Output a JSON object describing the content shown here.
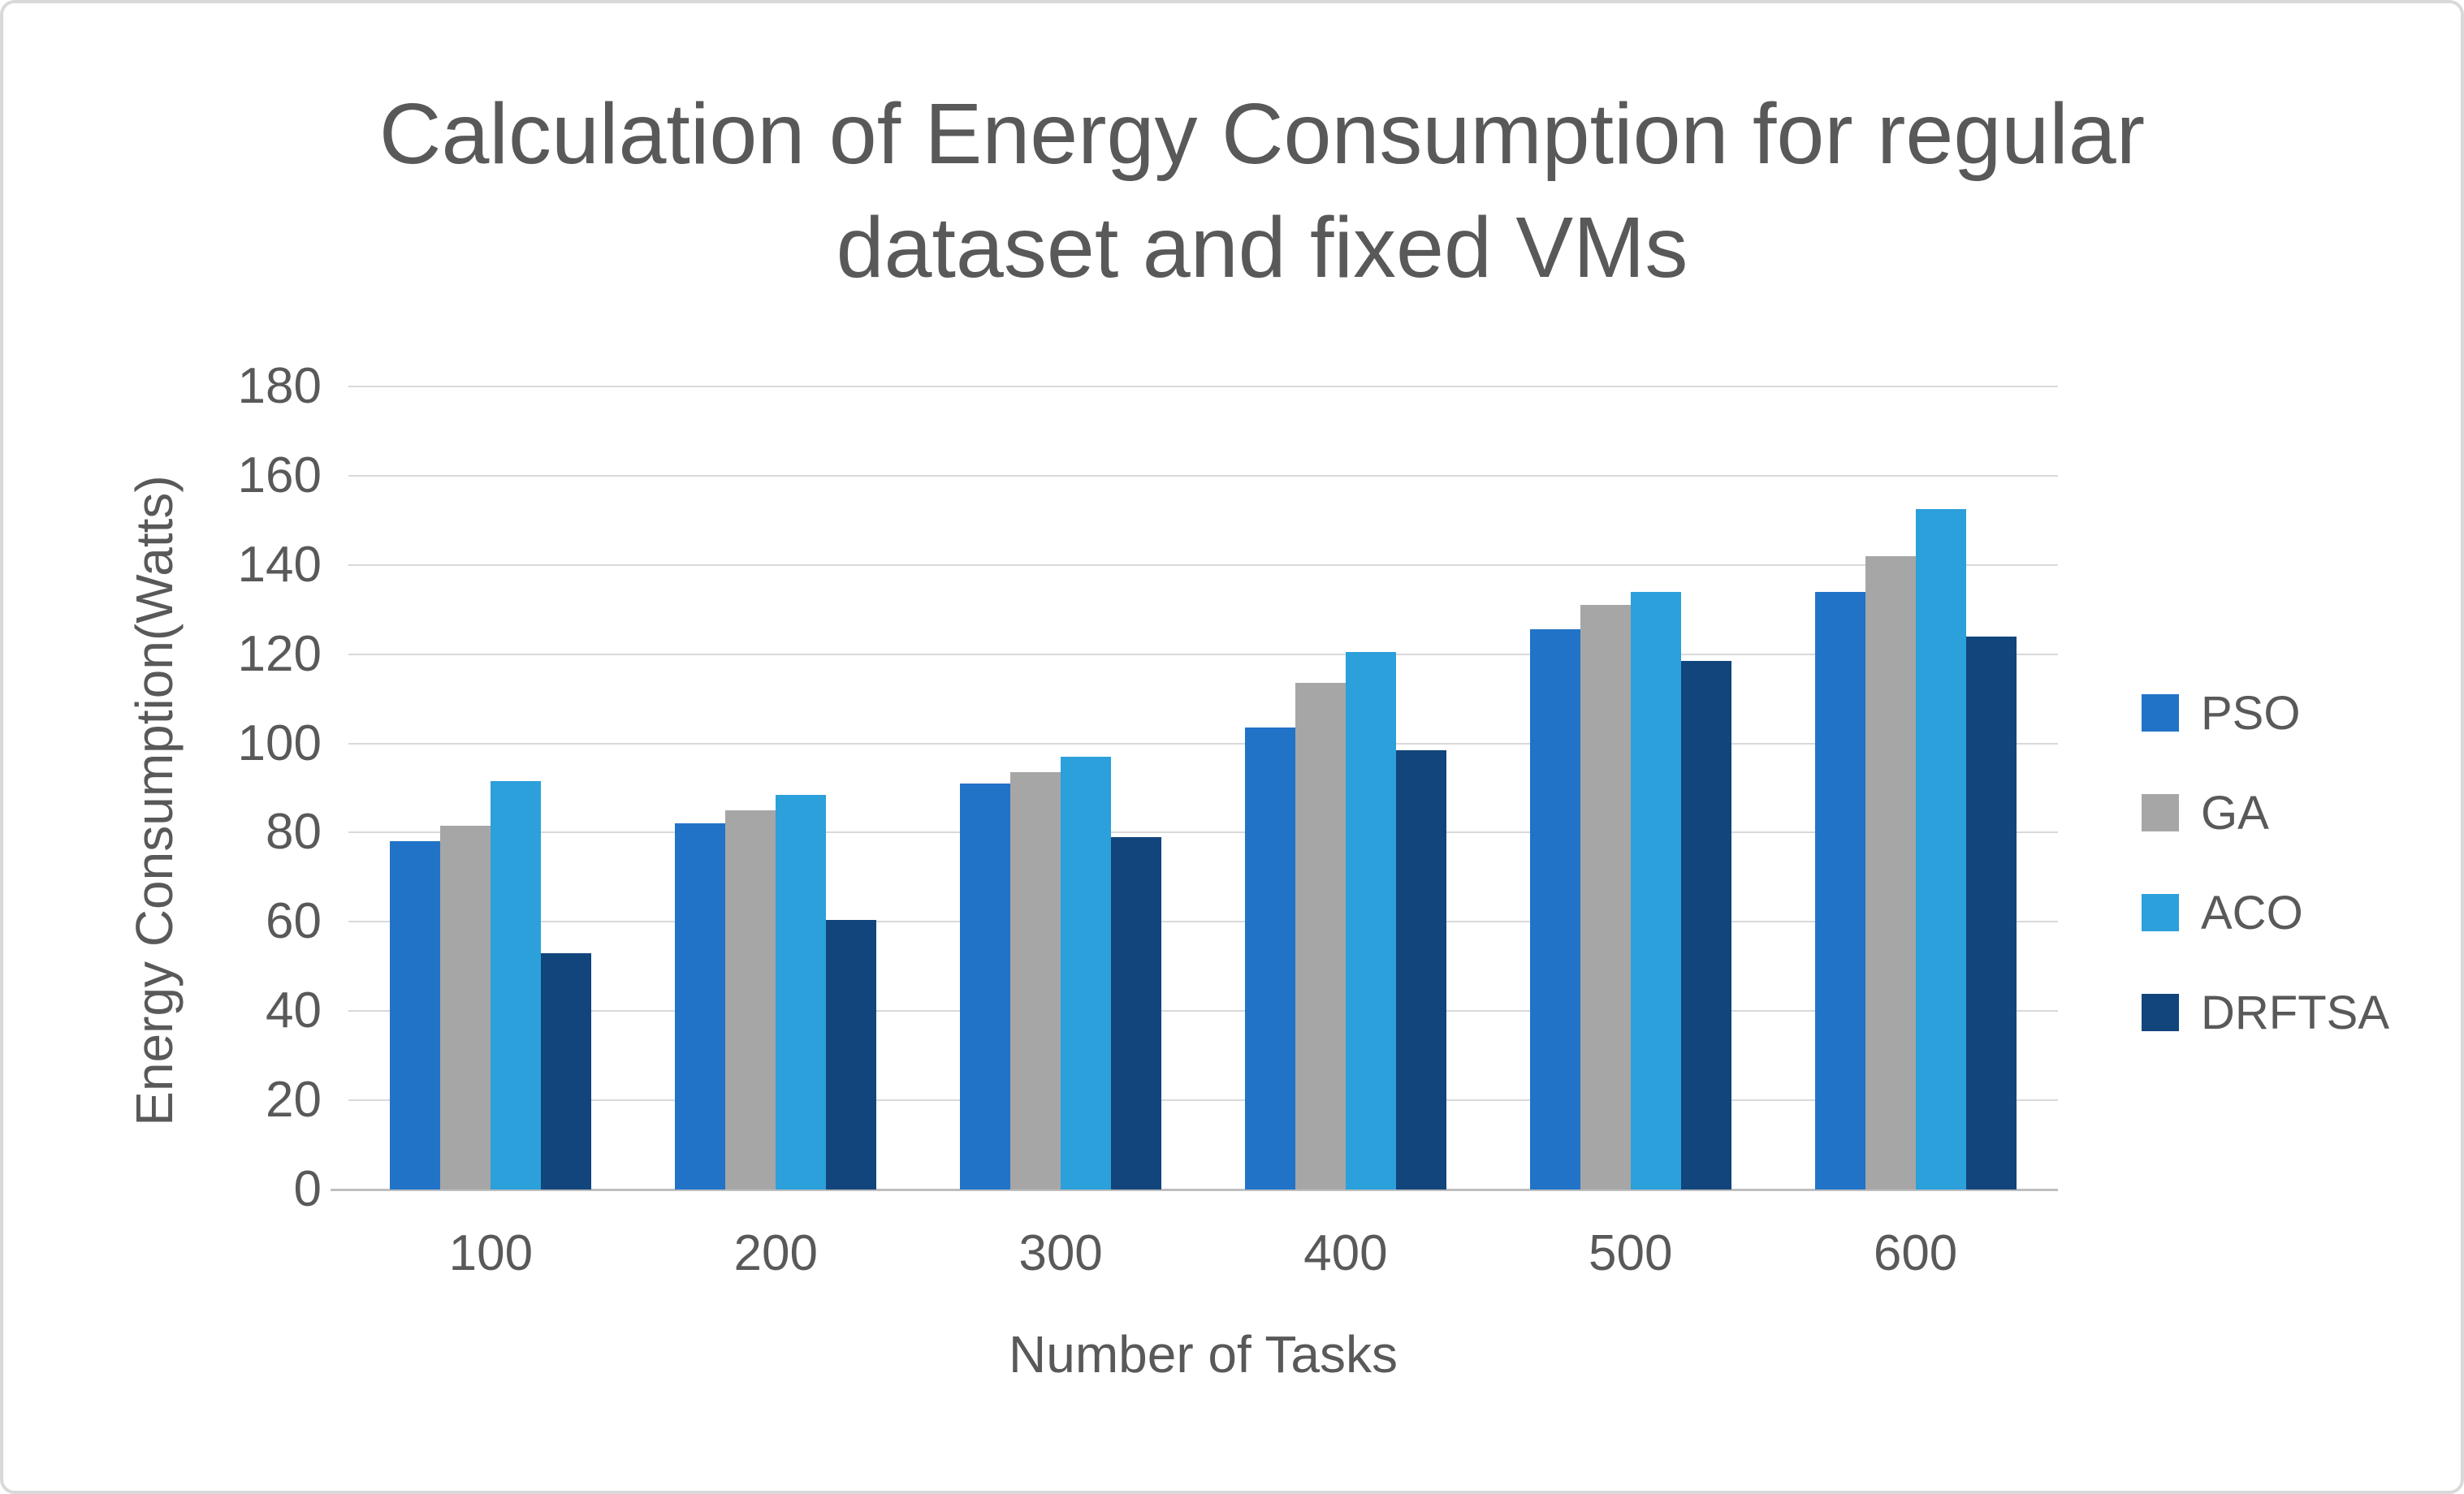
{
  "figure": {
    "background": "#FFFFFF",
    "border_color": "#D9D9D9",
    "text_color": "#595959",
    "gridline_color": "#D9D9D9",
    "baseline_color": "#BFBFBF"
  },
  "chart_data": {
    "type": "bar",
    "title": "Calculation of Energy Consumption for regular dataset and fixed VMs",
    "title_lines": [
      "Calculation of Energy Consumption for regular",
      "dataset and fixed VMs"
    ],
    "xlabel": "Number of Tasks",
    "ylabel": "Energy Consumption(Watts)",
    "categories": [
      "100",
      "200",
      "300",
      "400",
      "500",
      "600"
    ],
    "series": [
      {
        "name": "PSO",
        "color": "#2173C8",
        "values": [
          78,
          82,
          91,
          103.5,
          125.5,
          134
        ]
      },
      {
        "name": "GA",
        "color": "#A6A6A6",
        "values": [
          81.5,
          85,
          93.5,
          113.5,
          131,
          142
        ]
      },
      {
        "name": "ACO",
        "color": "#2BA0DA",
        "values": [
          91.5,
          88.5,
          97,
          120.5,
          134,
          152.5
        ]
      },
      {
        "name": "DRFTSA",
        "color": "#11457C",
        "values": [
          53,
          60.5,
          79,
          98.5,
          118.5,
          124
        ]
      }
    ],
    "ylim": [
      0,
      180
    ],
    "ytick_step": 20,
    "yticks": [
      "0",
      "20",
      "40",
      "60",
      "80",
      "100",
      "120",
      "140",
      "160",
      "180"
    ],
    "grid": true,
    "legend_position": "right",
    "legend_labels": [
      "PSO",
      "GA",
      "ACO",
      "DRFTSA"
    ]
  }
}
